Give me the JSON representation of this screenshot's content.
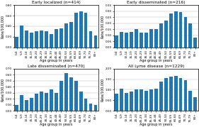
{
  "chart_data": [
    {
      "type": "bar",
      "title": "Early localized (n=414)",
      "xlabel": "Age group in years",
      "ylabel": "Rate/100,000",
      "categories": [
        "0-4",
        "5-9",
        "10-14",
        "15-19",
        "20-24",
        "25-29",
        "30-34",
        "35-39",
        "40-44",
        "45-49",
        "50-54",
        "55-59",
        "60-64",
        "65-69",
        "70-74",
        "75-79",
        "80+"
      ],
      "values": [
        0.2,
        0.42,
        0.32,
        0.28,
        0.3,
        0.32,
        0.3,
        0.25,
        0.35,
        0.36,
        0.46,
        0.48,
        0.65,
        0.68,
        0.65,
        0.3,
        0.22
      ],
      "ylim": [
        0,
        0.8
      ],
      "yticks": [
        {
          "value": 0.0,
          "label": "0.00"
        },
        {
          "value": 0.2,
          "label": "0.20"
        },
        {
          "value": 0.4,
          "label": "0.40"
        },
        {
          "value": 0.6,
          "label": "0.60"
        },
        {
          "value": 0.8,
          "label": "0.80"
        }
      ],
      "grid": true
    },
    {
      "type": "bar",
      "title": "Early disseminated (n=216)",
      "xlabel": "Age group in years",
      "ylabel": "Rate/100,000",
      "categories": [
        "0-4",
        "5-9",
        "10-14",
        "15-19",
        "20-24",
        "25-29",
        "30-34",
        "35-39",
        "40-44",
        "45-49",
        "50-54",
        "55-59",
        "60-64",
        "65-69",
        "70-74",
        "75-79",
        "80+"
      ],
      "values": [
        0.1,
        0.13,
        0.12,
        0.13,
        0.15,
        0.12,
        0.12,
        0.15,
        0.15,
        0.2,
        0.22,
        0.28,
        0.3,
        0.29,
        0.25,
        0.2,
        0.08
      ],
      "ylim": [
        0,
        0.35
      ],
      "yticks": [
        {
          "value": 0.0,
          "label": "0.00"
        },
        {
          "value": 0.05,
          "label": "0.05"
        },
        {
          "value": 0.1,
          "label": "0.10"
        },
        {
          "value": 0.15,
          "label": "0.15"
        },
        {
          "value": 0.2,
          "label": "0.20"
        },
        {
          "value": 0.25,
          "label": "0.25"
        },
        {
          "value": 0.3,
          "label": "0.30"
        },
        {
          "value": 0.35,
          "label": "0.35"
        }
      ],
      "grid": true
    },
    {
      "type": "bar",
      "title": "Late disseminated (n=470)",
      "xlabel": "Age group in years",
      "ylabel": "Rate/100,000",
      "categories": [
        "0-4",
        "5-9",
        "10-14",
        "15-19",
        "20-24",
        "25-29",
        "30-34",
        "35-39",
        "40-44",
        "45-49",
        "50-54",
        "55-59",
        "60-64",
        "65-69",
        "70-74",
        "75-79",
        "80+"
      ],
      "values": [
        0.1,
        0.26,
        0.18,
        0.22,
        0.28,
        0.32,
        0.3,
        0.35,
        0.3,
        0.5,
        0.62,
        0.55,
        0.5,
        0.32,
        0.2,
        0.12,
        0.1
      ],
      "ylim": [
        0,
        0.7
      ],
      "yticks": [
        {
          "value": 0.0,
          "label": "0.00"
        },
        {
          "value": 0.1,
          "label": "0.10"
        },
        {
          "value": 0.2,
          "label": "0.20"
        },
        {
          "value": 0.3,
          "label": "0.30"
        },
        {
          "value": 0.4,
          "label": "0.40"
        },
        {
          "value": 0.5,
          "label": "0.50"
        },
        {
          "value": 0.6,
          "label": "0.60"
        },
        {
          "value": 0.7,
          "label": "0.70"
        }
      ],
      "grid": true
    },
    {
      "type": "bar",
      "title": "All Lyme disease (n=1229)",
      "xlabel": "Age group in years",
      "ylabel": "Rate/100,000",
      "categories": [
        "0-4",
        "5-9",
        "10-14",
        "15-19",
        "20-24",
        "25-29",
        "30-34",
        "35-39",
        "40-44",
        "45-49",
        "50-54",
        "55-59",
        "60-64",
        "65-69",
        "70-74",
        "75-79",
        "80+"
      ],
      "values": [
        0.8,
        1.05,
        0.85,
        0.9,
        1.0,
        1.0,
        0.95,
        1.0,
        1.05,
        1.4,
        1.55,
        1.62,
        1.65,
        1.55,
        1.45,
        0.95,
        0.65
      ],
      "ylim": [
        0,
        2.0
      ],
      "yticks": [
        {
          "value": 0.0,
          "label": "0.00"
        },
        {
          "value": 0.5,
          "label": "0.50"
        },
        {
          "value": 1.0,
          "label": "1.00"
        },
        {
          "value": 1.5,
          "label": "1.50"
        },
        {
          "value": 2.0,
          "label": "2.00"
        }
      ],
      "grid": true
    }
  ]
}
